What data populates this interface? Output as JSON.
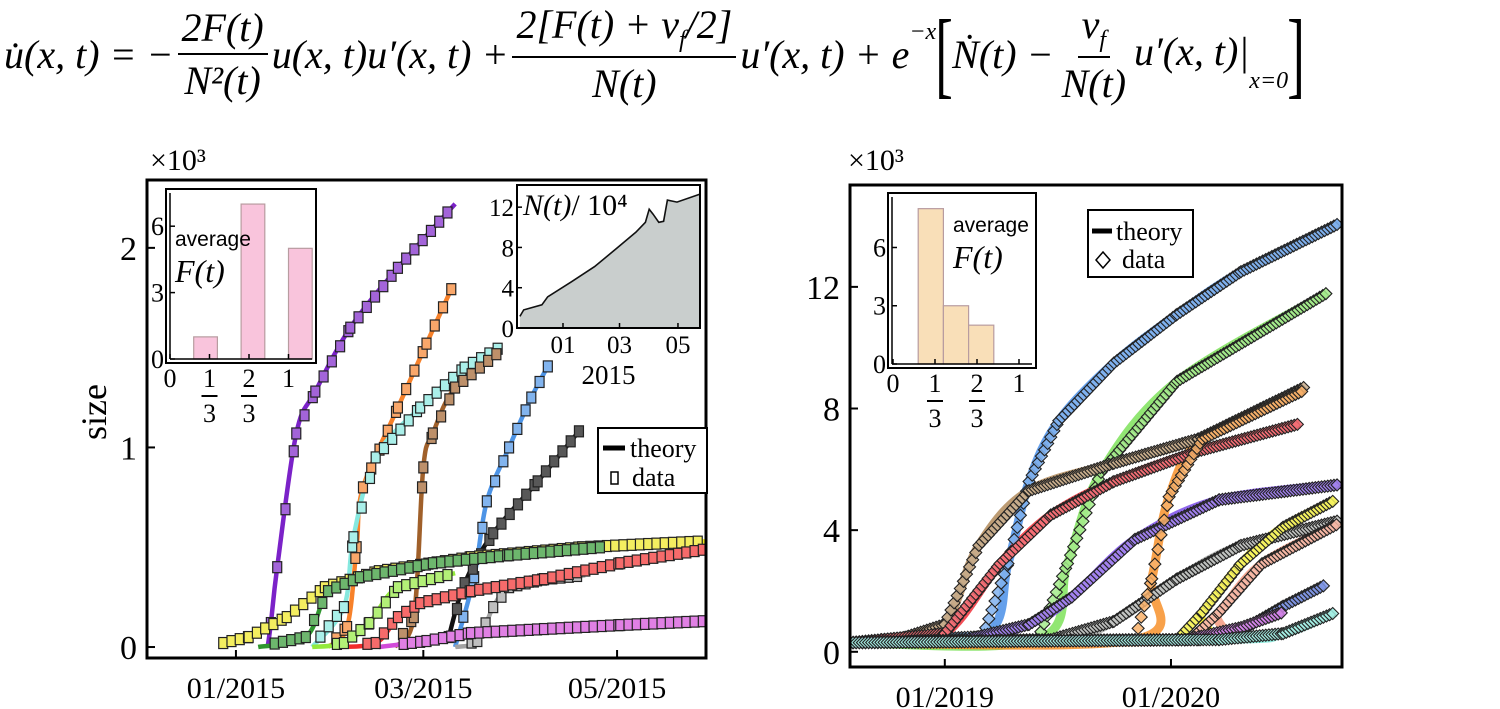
{
  "equation": {
    "lhs": "u̇(x, t) = −",
    "f1_num": "2F(t)",
    "f1_den": "N²(t)",
    "t2": "u(x, t)u′(x, t) +",
    "f2_num_a": "2[F(t) + ν",
    "f2_num_sub": "f",
    "f2_num_b": "/2]",
    "f2_den": "N(t)",
    "t3": "u′(x, t) + e",
    "t3_sup": "−x",
    "bracket_open": "[",
    "t4": "Ṅ(t) −",
    "f3_num": "ν",
    "f3_num_sub": "f",
    "f3_den": "N(t)",
    "t5": "u′(x, t)|",
    "t5_sub": "x=0",
    "bracket_close": "]"
  },
  "chart_data": [
    {
      "id": "left-main",
      "type": "line",
      "multiplier": "×10³",
      "ylabel": "size",
      "xlabel": "",
      "xlim": [
        "2014-12-04",
        "2015-05-29"
      ],
      "ylim": [
        -0.055,
        2.34
      ],
      "xticks": [
        {
          "date": "2015-01-01",
          "label": "01/2015"
        },
        {
          "date": "2015-03-01",
          "label": "03/2015"
        },
        {
          "date": "2015-05-01",
          "label": "05/2015"
        }
      ],
      "yticks": [
        {
          "value": 0,
          "label": "0"
        },
        {
          "value": 1,
          "label": "1"
        },
        {
          "value": 2,
          "label": "2"
        }
      ],
      "marker": "square",
      "legend": {
        "theory": "theory",
        "data": "data",
        "position": "middle-right"
      },
      "series": [
        {
          "color": "#7b22c8",
          "points": [
            [
              "2015-01-11",
              0.0
            ],
            [
              "2015-01-12",
              0.12
            ],
            [
              "2015-01-14",
              0.4
            ],
            [
              "2015-01-20",
              1.07
            ],
            [
              "2015-01-26",
              1.28
            ],
            [
              "2015-02-06",
              1.6
            ],
            [
              "2015-02-21",
              1.9
            ],
            [
              "2015-03-11",
              2.22
            ]
          ]
        },
        {
          "color": "#f7812a",
          "points": [
            [
              "2015-01-30",
              0
            ],
            [
              "2015-02-05",
              0.1
            ],
            [
              "2015-02-08",
              0.5
            ],
            [
              "2015-02-10",
              0.8
            ],
            [
              "2015-02-21",
              1.2
            ],
            [
              "2015-03-02",
              1.52
            ],
            [
              "2015-03-10",
              1.8
            ]
          ]
        },
        {
          "color": "#86e8df",
          "points": [
            [
              "2015-01-25",
              0
            ],
            [
              "2015-02-04",
              0.2
            ],
            [
              "2015-02-07",
              0.55
            ],
            [
              "2015-02-14",
              0.95
            ],
            [
              "2015-02-28",
              1.2
            ],
            [
              "2015-03-14",
              1.4
            ],
            [
              "2015-03-25",
              1.5
            ]
          ]
        },
        {
          "color": "#a0602a",
          "points": [
            [
              "2015-02-20",
              0
            ],
            [
              "2015-02-26",
              0.15
            ],
            [
              "2015-03-01",
              0.9
            ],
            [
              "2015-03-04",
              1.07
            ],
            [
              "2015-03-11",
              1.3
            ],
            [
              "2015-03-25",
              1.48
            ]
          ]
        },
        {
          "color": "#4d94e6",
          "points": [
            [
              "2015-03-11",
              0
            ],
            [
              "2015-03-17",
              0.35
            ],
            [
              "2015-03-21",
              0.73
            ],
            [
              "2015-03-28",
              1.0
            ],
            [
              "2015-04-04",
              1.25
            ],
            [
              "2015-04-10",
              1.43
            ]
          ]
        },
        {
          "color": "#111111",
          "points": [
            [
              "2015-03-09",
              0.05
            ],
            [
              "2015-03-14",
              0.32
            ],
            [
              "2015-03-23",
              0.57
            ],
            [
              "2015-04-06",
              0.83
            ],
            [
              "2015-04-20",
              1.1
            ]
          ]
        },
        {
          "color": "#a3a3a3",
          "points": [
            [
              "2015-03-11",
              0
            ],
            [
              "2015-03-18",
              0.03
            ],
            [
              "2015-03-23",
              0.2
            ],
            [
              "2015-03-28",
              0.3
            ],
            [
              "2015-04-08",
              0.34
            ],
            [
              "2015-04-21",
              0.36
            ]
          ]
        },
        {
          "color": "#efe61c",
          "points": [
            [
              "2014-12-28",
              0.02
            ],
            [
              "2015-01-05",
              0.05
            ],
            [
              "2015-01-17",
              0.15
            ],
            [
              "2015-01-29",
              0.3
            ],
            [
              "2015-02-15",
              0.38
            ],
            [
              "2015-03-16",
              0.45
            ],
            [
              "2015-04-20",
              0.5
            ],
            [
              "2015-05-29",
              0.53
            ]
          ]
        },
        {
          "color": "#2f962f",
          "points": [
            [
              "2015-01-08",
              0
            ],
            [
              "2015-01-23",
              0.05
            ],
            [
              "2015-01-30",
              0.28
            ],
            [
              "2015-02-09",
              0.35
            ],
            [
              "2015-03-04",
              0.42
            ],
            [
              "2015-03-28",
              0.46
            ],
            [
              "2015-04-26",
              0.5
            ]
          ]
        },
        {
          "color": "#93ea3c",
          "points": [
            [
              "2015-01-25",
              0
            ],
            [
              "2015-02-04",
              0.02
            ],
            [
              "2015-02-12",
              0.12
            ],
            [
              "2015-02-21",
              0.3
            ],
            [
              "2015-03-11",
              0.37
            ]
          ]
        },
        {
          "color": "#f22b2b",
          "points": [
            [
              "2015-02-01",
              0
            ],
            [
              "2015-02-14",
              0.02
            ],
            [
              "2015-02-21",
              0.15
            ],
            [
              "2015-02-28",
              0.22
            ],
            [
              "2015-03-16",
              0.28
            ],
            [
              "2015-04-08",
              0.34
            ],
            [
              "2015-05-02",
              0.42
            ],
            [
              "2015-05-29",
              0.49
            ]
          ]
        },
        {
          "color": "#d24ad9",
          "points": [
            [
              "2015-02-15",
              0
            ],
            [
              "2015-03-02",
              0.03
            ],
            [
              "2015-03-16",
              0.07
            ],
            [
              "2015-04-08",
              0.09
            ],
            [
              "2015-05-02",
              0.11
            ],
            [
              "2015-05-29",
              0.13
            ]
          ]
        }
      ]
    },
    {
      "id": "left-inset-F",
      "type": "bar",
      "label_top": "average",
      "label": "F(t)",
      "xlim": [
        0,
        1.25
      ],
      "ylim": [
        0,
        7.5
      ],
      "xticks": [
        {
          "value": 0,
          "text": "0"
        },
        {
          "value": 0.3333,
          "num": "1",
          "den": "3"
        },
        {
          "value": 0.6667,
          "num": "2",
          "den": "3"
        },
        {
          "value": 1,
          "text": "1"
        }
      ],
      "yticks": [
        {
          "value": 0,
          "label": "0"
        },
        {
          "value": 3,
          "label": "3"
        },
        {
          "value": 6,
          "label": "6"
        }
      ],
      "bins": [
        [
          0.2,
          0.4
        ],
        [
          0.6,
          0.8
        ],
        [
          1.0,
          1.2
        ]
      ],
      "values": [
        1,
        7,
        5
      ],
      "color": "#f9c4dc"
    },
    {
      "id": "left-inset-N",
      "type": "area",
      "title_var": "N(t)",
      "title_unit": "/ 10⁴",
      "xlabel": "2015",
      "xlim": [
        "2014-11-14",
        "2015-05-24"
      ],
      "ylim": [
        0,
        14.2
      ],
      "xticks": [
        {
          "date": "2015-01-01",
          "label": "01"
        },
        {
          "date": "2015-03-01",
          "label": "03"
        },
        {
          "date": "2015-05-01",
          "label": "05"
        }
      ],
      "yticks": [
        {
          "value": 0,
          "label": "0"
        },
        {
          "value": 4,
          "label": "4"
        },
        {
          "value": 8,
          "label": "8"
        },
        {
          "value": 12,
          "label": "12"
        }
      ],
      "color": "#c9cecd",
      "points": [
        [
          "2014-11-17",
          1.15
        ],
        [
          "2014-11-21",
          1.8
        ],
        [
          "2014-12-10",
          2.3
        ],
        [
          "2014-12-16",
          3.1
        ],
        [
          "2015-01-10",
          4.6
        ],
        [
          "2015-02-03",
          6.1
        ],
        [
          "2015-02-26",
          7.9
        ],
        [
          "2015-03-18",
          9.5
        ],
        [
          "2015-03-28",
          10.5
        ],
        [
          "2015-04-01",
          11.8
        ],
        [
          "2015-04-05",
          11.3
        ],
        [
          "2015-04-11",
          10.5
        ],
        [
          "2015-04-16",
          10.6
        ],
        [
          "2015-04-20",
          12.7
        ],
        [
          "2015-04-30",
          12.5
        ],
        [
          "2015-05-24",
          13.3
        ]
      ]
    },
    {
      "id": "right-main",
      "type": "line",
      "multiplier": "×10³",
      "xlabel": "",
      "ylabel": "",
      "xlim": [
        "2018-08-01",
        "2020-10-03"
      ],
      "ylim": [
        -0.5,
        15.35
      ],
      "xticks": [
        {
          "date": "2019-01-01",
          "label": "01/2019"
        },
        {
          "date": "2020-01-01",
          "label": "01/2020"
        }
      ],
      "yticks": [
        {
          "value": 0,
          "label": "0"
        },
        {
          "value": 4,
          "label": "4"
        },
        {
          "value": 8,
          "label": "8"
        },
        {
          "value": 12,
          "label": "12"
        }
      ],
      "marker": "diamond",
      "legend": {
        "theory": "theory",
        "data": "data",
        "position": "top-center"
      },
      "series": [
        {
          "color": "#4a8fe8",
          "points": [
            [
              "2018-08-01",
              0.3
            ],
            [
              "2019-03-03",
              0.5
            ],
            [
              "2019-04-13",
              2.9
            ],
            [
              "2019-05-17",
              5.6
            ],
            [
              "2019-07-04",
              7.6
            ],
            [
              "2019-10-01",
              9.5
            ],
            [
              "2020-01-11",
              11.1
            ],
            [
              "2020-04-23",
              12.5
            ],
            [
              "2020-09-30",
              14.1
            ]
          ]
        },
        {
          "color": "#7ee25a",
          "points": [
            [
              "2018-08-01",
              0.3
            ],
            [
              "2019-05-31",
              0.4
            ],
            [
              "2019-07-18",
              2.9
            ],
            [
              "2019-09-10",
              5.9
            ],
            [
              "2020-01-11",
              8.9
            ],
            [
              "2020-09-09",
              11.8
            ]
          ]
        },
        {
          "color": "#b08a5a",
          "points": [
            [
              "2018-08-01",
              0.3
            ],
            [
              "2018-10-24",
              0.45
            ],
            [
              "2019-01-01",
              0.9
            ],
            [
              "2019-02-25",
              3.5
            ],
            [
              "2019-05-17",
              5.3
            ],
            [
              "2019-10-01",
              6.2
            ],
            [
              "2020-02-14",
              7.0
            ],
            [
              "2020-08-03",
              8.7
            ]
          ]
        },
        {
          "color": "#f0303a",
          "points": [
            [
              "2018-08-01",
              0.3
            ],
            [
              "2018-09-21",
              0.4
            ],
            [
              "2019-01-01",
              0.6
            ],
            [
              "2019-03-31",
              2.9
            ],
            [
              "2019-06-21",
              4.5
            ],
            [
              "2019-10-01",
              5.6
            ],
            [
              "2020-02-14",
              6.6
            ],
            [
              "2020-07-27",
              7.5
            ]
          ]
        },
        {
          "color": "#7a4ce8",
          "points": [
            [
              "2018-08-01",
              0.3
            ],
            [
              "2019-02-04",
              0.4
            ],
            [
              "2019-05-17",
              0.9
            ],
            [
              "2019-07-25",
              1.8
            ],
            [
              "2019-11-04",
              3.7
            ],
            [
              "2020-03-19",
              5.0
            ],
            [
              "2020-09-30",
              5.5
            ]
          ]
        },
        {
          "color": "#a8aaa8",
          "points": [
            [
              "2018-08-01",
              0.3
            ],
            [
              "2019-06-21",
              0.4
            ],
            [
              "2019-10-01",
              1.0
            ],
            [
              "2020-01-11",
              2.4
            ],
            [
              "2020-04-23",
              3.5
            ],
            [
              "2020-09-26",
              4.3
            ]
          ]
        },
        {
          "color": "#f7902a",
          "points": [
            [
              "2018-08-01",
              0.3
            ],
            [
              "2019-11-04",
              0.4
            ],
            [
              "2019-12-01",
              2.4
            ],
            [
              "2019-12-29",
              5.1
            ],
            [
              "2020-02-21",
              7.0
            ],
            [
              "2020-08-03",
              8.6
            ]
          ]
        },
        {
          "color": "#f4ee1a",
          "points": [
            [
              "2018-08-01",
              0.3
            ],
            [
              "2020-01-11",
              0.4
            ],
            [
              "2020-02-21",
              1.3
            ],
            [
              "2020-04-23",
              2.9
            ],
            [
              "2020-06-30",
              4.1
            ],
            [
              "2020-09-23",
              5.0
            ]
          ]
        },
        {
          "color": "#f59a80",
          "points": [
            [
              "2018-08-01",
              0.3
            ],
            [
              "2020-02-01",
              0.4
            ],
            [
              "2020-03-19",
              1.3
            ],
            [
              "2020-05-27",
              2.9
            ],
            [
              "2020-09-26",
              4.2
            ]
          ]
        },
        {
          "color": "#4a6ad8",
          "points": [
            [
              "2018-08-01",
              0.3
            ],
            [
              "2020-02-14",
              0.4
            ],
            [
              "2020-04-23",
              0.7
            ],
            [
              "2020-06-30",
              1.5
            ],
            [
              "2020-09-06",
              2.2
            ]
          ]
        },
        {
          "color": "#c050e0",
          "points": [
            [
              "2018-08-01",
              0.3
            ],
            [
              "2020-01-25",
              0.4
            ],
            [
              "2020-04-23",
              0.8
            ],
            [
              "2020-06-30",
              1.3
            ]
          ]
        },
        {
          "color": "#7fe8d8",
          "points": [
            [
              "2018-08-01",
              0.3
            ],
            [
              "2020-03-19",
              0.4
            ],
            [
              "2020-06-30",
              0.6
            ],
            [
              "2020-09-23",
              1.3
            ]
          ]
        }
      ]
    },
    {
      "id": "right-inset-F",
      "type": "bar",
      "label_top": "average",
      "label": "F(t)",
      "xlim": [
        0,
        1.15
      ],
      "ylim": [
        0,
        8.6
      ],
      "xticks": [
        {
          "value": 0,
          "text": "0"
        },
        {
          "value": 0.3333,
          "num": "1",
          "den": "3"
        },
        {
          "value": 0.6667,
          "num": "2",
          "den": "3"
        },
        {
          "value": 1,
          "text": "1"
        }
      ],
      "yticks": [
        {
          "value": 0,
          "label": "0"
        },
        {
          "value": 3,
          "label": "3"
        },
        {
          "value": 6,
          "label": "6"
        }
      ],
      "bins": [
        [
          0.2,
          0.4
        ],
        [
          0.4,
          0.6
        ],
        [
          0.6,
          0.8
        ]
      ],
      "values": [
        8,
        3,
        2
      ],
      "color": "#f9dfb8"
    }
  ]
}
